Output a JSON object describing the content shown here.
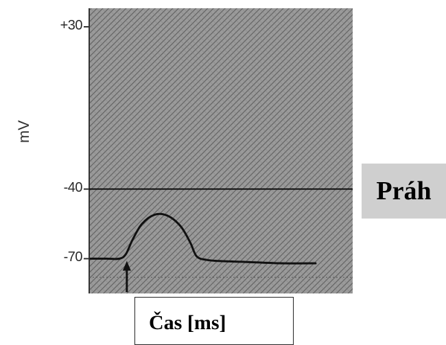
{
  "chart_data": {
    "type": "line",
    "ylabel": "mV",
    "xlabel": "Čas [ms]",
    "ylim": [
      -85,
      38
    ],
    "y_ticks": [
      {
        "value": 30,
        "label": "+30"
      },
      {
        "value": -40,
        "label": "-40"
      },
      {
        "value": -70,
        "label": "-70"
      }
    ],
    "threshold": {
      "value": -40,
      "label": "Práh"
    },
    "series": [
      {
        "x": [
          0,
          0.5,
          0.9,
          1.1,
          1.3,
          1.6,
          2.0,
          2.4,
          2.8,
          3.1,
          3.3,
          3.6,
          4.0,
          5.0,
          6.0,
          7.0
        ],
        "values": [
          -70,
          -70,
          -70,
          -68,
          -62,
          -55,
          -51,
          -51.5,
          -56,
          -63,
          -69,
          -70.5,
          -71,
          -71.5,
          -72,
          -72
        ]
      }
    ],
    "stimulus_x": 1.0,
    "xlim": [
      0,
      7.6
    ]
  }
}
